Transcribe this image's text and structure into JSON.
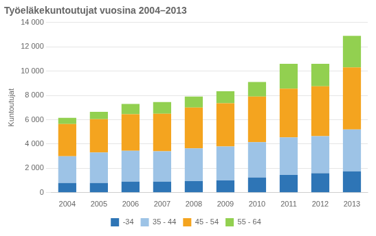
{
  "chart_data": {
    "type": "bar",
    "stacked": true,
    "title": "Työeläkekuntoutujat vuosina 2004–2013",
    "ylabel": "Kuntoutujat",
    "categories": [
      "2004",
      "2005",
      "2006",
      "2007",
      "2008",
      "2009",
      "2010",
      "2011",
      "2012",
      "2013"
    ],
    "series": [
      {
        "name": "-34",
        "color": "#2e75b6",
        "values": [
          800,
          800,
          900,
          900,
          950,
          1000,
          1250,
          1450,
          1600,
          1750
        ]
      },
      {
        "name": "35 - 44",
        "color": "#9dc3e6",
        "values": [
          2200,
          2500,
          2550,
          2500,
          2700,
          2800,
          2900,
          3100,
          3050,
          3450
        ]
      },
      {
        "name": "45 - 54",
        "color": "#f4a41f",
        "values": [
          2650,
          2750,
          3000,
          3100,
          3350,
          3550,
          3750,
          4000,
          4100,
          5100
        ]
      },
      {
        "name": "55 - 64",
        "color": "#92d050",
        "values": [
          500,
          600,
          850,
          950,
          900,
          1000,
          1200,
          2050,
          1850,
          2600
        ]
      }
    ],
    "ylim": [
      0,
      14000
    ],
    "yticks": [
      0,
      {
        "value": 2000,
        "label": "2 000"
      },
      {
        "value": 4000,
        "label": "4 000"
      },
      {
        "value": 6000,
        "label": "6 000"
      },
      {
        "value": 8000,
        "label": "8 000"
      },
      {
        "value": 10000,
        "label": "10 000"
      },
      {
        "value": 12000,
        "label": "12 000"
      },
      {
        "value": 14000,
        "label": "14 000"
      }
    ],
    "grid": true,
    "legend": "bottom"
  }
}
